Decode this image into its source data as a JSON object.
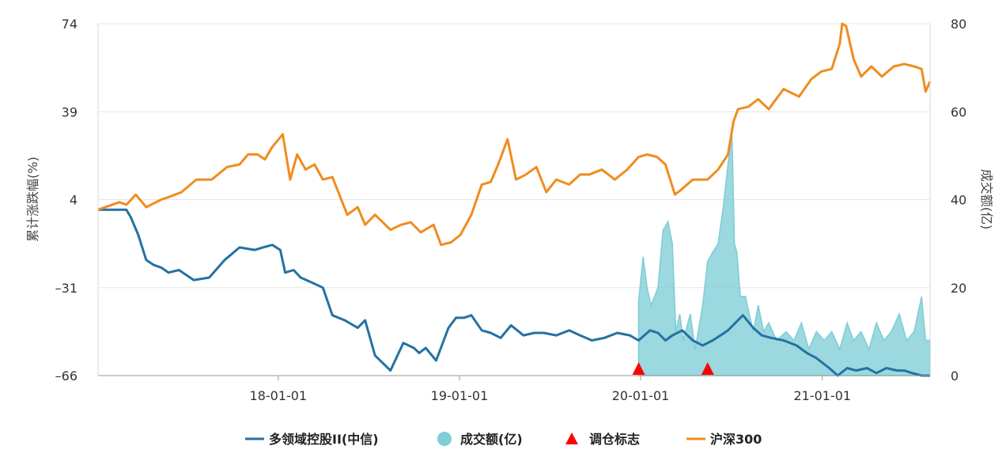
{
  "chart_data": {
    "type": "line",
    "x_ticks": [
      "18-01-01",
      "19-01-01",
      "20-01-01",
      "21-01-01"
    ],
    "y_left": {
      "ticks": [
        74,
        39,
        4,
        -31,
        -66
      ],
      "label": "累计涨跌幅(%)",
      "range": [
        -66,
        74
      ]
    },
    "y_right": {
      "ticks": [
        80,
        60,
        40,
        20,
        0
      ],
      "label": "成交额(亿)",
      "range": [
        0,
        80
      ]
    },
    "legend": [
      {
        "label": "多领域控股II(中信)",
        "color": "#2471a3",
        "kind": "line"
      },
      {
        "label": "成交额(亿)",
        "color": "#7fcdd6",
        "kind": "circle"
      },
      {
        "label": "调仓标志",
        "color": "#ff0000",
        "kind": "triangle"
      },
      {
        "label": "沪深300",
        "color": "#f08c1e",
        "kind": "line"
      }
    ],
    "series": [
      {
        "name": "多领域控股II(中信)",
        "axis": "left",
        "color": "#2471a3",
        "x": [
          "2017-01-03",
          "2017-02-15",
          "2017-03-01",
          "2017-03-10",
          "2017-03-25",
          "2017-04-10",
          "2017-04-25",
          "2017-05-10",
          "2017-05-25",
          "2017-06-15",
          "2017-07-15",
          "2017-08-15",
          "2017-09-15",
          "2017-10-15",
          "2017-11-15",
          "2017-12-01",
          "2017-12-20",
          "2018-01-05",
          "2018-01-15",
          "2018-02-01",
          "2018-02-15",
          "2018-03-10",
          "2018-04-01",
          "2018-04-20",
          "2018-05-15",
          "2018-06-10",
          "2018-06-25",
          "2018-07-15",
          "2018-08-15",
          "2018-09-10",
          "2018-10-01",
          "2018-10-12",
          "2018-10-25",
          "2018-11-15",
          "2018-12-10",
          "2018-12-25",
          "2019-01-10",
          "2019-01-25",
          "2019-02-15",
          "2019-03-05",
          "2019-03-25",
          "2019-04-15",
          "2019-05-10",
          "2019-06-01",
          "2019-06-20",
          "2019-07-15",
          "2019-08-10",
          "2019-09-01",
          "2019-09-25",
          "2019-10-20",
          "2019-11-15",
          "2019-12-10",
          "2019-12-28",
          "2020-01-20",
          "2020-02-05",
          "2020-02-20",
          "2020-03-05",
          "2020-03-25",
          "2020-04-15",
          "2020-05-05",
          "2020-05-25",
          "2020-06-10",
          "2020-06-25",
          "2020-07-10",
          "2020-07-25",
          "2020-08-15",
          "2020-09-01",
          "2020-09-20",
          "2020-10-15",
          "2020-11-10",
          "2020-12-01",
          "2020-12-20",
          "2021-01-15",
          "2021-02-01",
          "2021-02-20",
          "2021-03-10",
          "2021-04-01",
          "2021-04-20",
          "2021-05-10",
          "2021-06-01",
          "2021-06-15",
          "2021-07-01",
          "2021-07-20",
          "2021-08-06"
        ],
        "values": [
          0,
          0,
          0,
          -3,
          -10,
          -20,
          -22,
          -23,
          -25,
          -24,
          -28,
          -27,
          -20,
          -15,
          -16,
          -15,
          -14,
          -16,
          -25,
          -24,
          -27,
          -29,
          -31,
          -42,
          -44,
          -47,
          -44,
          -58,
          -64,
          -53,
          -55,
          -57,
          -55,
          -60,
          -47,
          -43,
          -43,
          -42,
          -48,
          -49,
          -51,
          -46,
          -50,
          -49,
          -49,
          -50,
          -48,
          -50,
          -52,
          -51,
          -49,
          -50,
          -52,
          -48,
          -49,
          -52,
          -50,
          -48,
          -52,
          -54,
          -52,
          -50,
          -48,
          -45,
          -42,
          -47,
          -50,
          -51,
          -52,
          -54,
          -57,
          -59,
          -63,
          -66,
          -63,
          -64,
          -63,
          -65,
          -63,
          -64,
          -64,
          -65,
          -66,
          -66
        ]
      },
      {
        "name": "沪深300",
        "axis": "left",
        "color": "#f08c1e",
        "x": [
          "2017-01-03",
          "2017-02-15",
          "2017-03-01",
          "2017-03-20",
          "2017-04-10",
          "2017-05-10",
          "2017-05-25",
          "2017-06-20",
          "2017-07-20",
          "2017-08-20",
          "2017-09-20",
          "2017-10-15",
          "2017-11-01",
          "2017-11-20",
          "2017-12-05",
          "2017-12-20",
          "2018-01-10",
          "2018-01-25",
          "2018-02-08",
          "2018-02-25",
          "2018-03-15",
          "2018-04-01",
          "2018-04-20",
          "2018-05-20",
          "2018-06-10",
          "2018-06-25",
          "2018-07-15",
          "2018-08-15",
          "2018-09-05",
          "2018-09-25",
          "2018-10-15",
          "2018-11-10",
          "2018-11-25",
          "2018-12-15",
          "2019-01-03",
          "2019-01-25",
          "2019-02-15",
          "2019-03-05",
          "2019-03-20",
          "2019-04-08",
          "2019-04-25",
          "2019-05-15",
          "2019-06-05",
          "2019-06-25",
          "2019-07-15",
          "2019-08-10",
          "2019-09-01",
          "2019-09-20",
          "2019-10-15",
          "2019-11-10",
          "2019-12-05",
          "2019-12-28",
          "2020-01-14",
          "2020-02-03",
          "2020-02-20",
          "2020-03-10",
          "2020-03-23",
          "2020-04-15",
          "2020-05-15",
          "2020-06-05",
          "2020-06-25",
          "2020-07-06",
          "2020-07-15",
          "2020-08-05",
          "2020-08-25",
          "2020-09-15",
          "2020-10-15",
          "2020-11-15",
          "2020-12-10",
          "2020-12-30",
          "2021-01-20",
          "2021-02-05",
          "2021-02-10",
          "2021-02-18",
          "2021-03-05",
          "2021-03-20",
          "2021-04-10",
          "2021-05-01",
          "2021-05-25",
          "2021-06-15",
          "2021-07-05",
          "2021-07-20",
          "2021-07-28",
          "2021-08-06"
        ],
        "values": [
          0,
          3,
          2,
          6,
          1,
          4,
          5,
          7,
          12,
          12,
          17,
          18,
          22,
          22,
          20,
          25,
          30,
          12,
          22,
          16,
          18,
          12,
          13,
          -2,
          1,
          -6,
          -2,
          -8,
          -6,
          -5,
          -9,
          -6,
          -14,
          -13,
          -10,
          -2,
          10,
          11,
          18,
          28,
          12,
          14,
          17,
          7,
          12,
          10,
          14,
          14,
          16,
          12,
          16,
          21,
          22,
          21,
          18,
          6,
          8,
          12,
          12,
          16,
          22,
          35,
          40,
          41,
          44,
          40,
          48,
          45,
          52,
          55,
          56,
          66,
          74,
          73,
          60,
          53,
          57,
          53,
          57,
          58,
          57,
          56,
          47,
          51
        ]
      },
      {
        "name": "成交额(亿)",
        "axis": "right",
        "color": "#7fcdd6",
        "x": [
          "2019-12-28",
          "2020-01-06",
          "2020-01-14",
          "2020-01-22",
          "2020-02-05",
          "2020-02-15",
          "2020-02-25",
          "2020-03-05",
          "2020-03-12",
          "2020-03-20",
          "2020-03-27",
          "2020-04-10",
          "2020-04-20",
          "2020-05-05",
          "2020-05-15",
          "2020-05-25",
          "2020-06-05",
          "2020-06-15",
          "2020-06-25",
          "2020-07-03",
          "2020-07-08",
          "2020-07-13",
          "2020-07-20",
          "2020-07-30",
          "2020-08-15",
          "2020-08-25",
          "2020-09-05",
          "2020-09-15",
          "2020-10-01",
          "2020-10-20",
          "2020-11-05",
          "2020-11-20",
          "2020-12-05",
          "2020-12-20",
          "2021-01-05",
          "2021-01-20",
          "2021-02-05",
          "2021-02-20",
          "2021-03-05",
          "2021-03-20",
          "2021-04-05",
          "2021-04-20",
          "2021-05-05",
          "2021-05-20",
          "2021-06-05",
          "2021-06-20",
          "2021-07-05",
          "2021-07-20",
          "2021-07-28",
          "2021-08-06"
        ],
        "values": [
          17,
          27,
          20,
          16,
          20,
          33,
          35,
          30,
          10,
          14,
          8,
          14,
          6,
          16,
          26,
          28,
          30,
          38,
          48,
          55,
          30,
          28,
          18,
          18,
          10,
          16,
          10,
          12,
          8,
          10,
          8,
          12,
          6,
          10,
          8,
          10,
          6,
          12,
          8,
          10,
          6,
          12,
          8,
          10,
          14,
          8,
          10,
          18,
          8,
          8
        ]
      }
    ],
    "rebalance_markers": [
      "2019-12-28",
      "2020-05-15"
    ]
  }
}
